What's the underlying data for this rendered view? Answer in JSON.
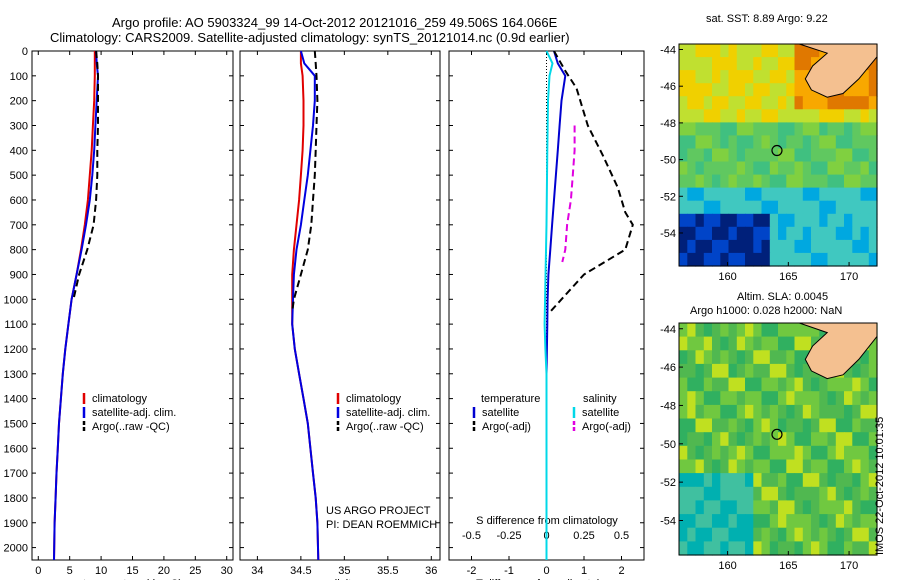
{
  "titles": {
    "line1": "Argo profile: AO 5903324_99 14-Oct-2012 20121016_259 49.506S 164.066E",
    "line2": "Climatology: CARS2009. Satellite-adjusted climatology: synTS_20121014.nc (0.9d earlier)"
  },
  "map_top_title": "sat. SST: 8.89 Argo: 9.22",
  "map_bottom_title1": "Altim. SLA: 0.0045",
  "map_bottom_title2": "Argo h1000: 0.028 h2000: NaN",
  "side_stamp": "IMOS 22-Oct-2012 10:01:35",
  "project": {
    "line1": "US ARGO PROJECT",
    "line2": "PI: DEAN ROEMMICH"
  },
  "legend": {
    "clim": "climatology",
    "sat": "satellite-adj. clim.",
    "argo": "Argo(..raw -QC)",
    "temperature_head": "temperature",
    "salinity_head": "salinity",
    "satellite": "satellite",
    "argo_adj": "Argo(-adj)"
  },
  "colors": {
    "clim": "#e00000",
    "sat": "#0000e0",
    "argo": "#000000",
    "diff_t_sat": "#0000d0",
    "diff_s_sat": "#00d8e8",
    "diff_s_argo": "#e000e0",
    "land": "#f4c090",
    "circle": "#000000"
  },
  "chart_data": [
    {
      "type": "line",
      "panel": "temperature",
      "xlabel": "temperature (deg C)",
      "ylabel": "",
      "xlim": [
        -1,
        31
      ],
      "ylim": [
        0,
        2050
      ],
      "y_reversed": true,
      "xticks": [
        0,
        5,
        10,
        15,
        20,
        25,
        30
      ],
      "yticks": [
        0,
        100,
        200,
        300,
        400,
        500,
        600,
        700,
        800,
        900,
        1000,
        1100,
        1200,
        1300,
        1400,
        1500,
        1600,
        1700,
        1800,
        1900,
        2000
      ],
      "series": [
        {
          "name": "climatology",
          "style": "solid",
          "color_key": "clim",
          "x": [
            9.0,
            9.0,
            9.0,
            8.9,
            8.7,
            8.5,
            8.2,
            7.9,
            7.4,
            6.8,
            6.1,
            5.3,
            4.8,
            4.3,
            3.9,
            3.6,
            3.3,
            3.1,
            2.9,
            2.75,
            2.6,
            2.5
          ],
          "y": [
            0,
            50,
            100,
            200,
            300,
            400,
            500,
            600,
            700,
            800,
            900,
            1000,
            1100,
            1200,
            1300,
            1400,
            1500,
            1600,
            1700,
            1800,
            1900,
            2050
          ]
        },
        {
          "name": "satellite-adj. clim.",
          "style": "solid",
          "color_key": "sat",
          "x": [
            9.2,
            9.3,
            9.5,
            9.3,
            9.1,
            8.9,
            8.6,
            8.2,
            7.6,
            6.9,
            6.1,
            5.3,
            4.8,
            4.3,
            3.9,
            3.6,
            3.3,
            3.1,
            2.9,
            2.75,
            2.6,
            2.5
          ],
          "y": [
            0,
            50,
            100,
            200,
            300,
            400,
            500,
            600,
            700,
            800,
            900,
            1000,
            1100,
            1200,
            1300,
            1400,
            1500,
            1600,
            1700,
            1800,
            1900,
            2050
          ]
        },
        {
          "name": "Argo(..raw -QC)",
          "style": "dashed",
          "color_key": "argo",
          "x": [
            9.2,
            9.4,
            9.5,
            9.5,
            9.5,
            9.4,
            9.4,
            9.2,
            8.8,
            7.8,
            6.5,
            5.6
          ],
          "y": [
            0,
            50,
            100,
            200,
            300,
            400,
            500,
            600,
            700,
            800,
            900,
            1000
          ]
        }
      ]
    },
    {
      "type": "line",
      "panel": "salinity",
      "xlabel": "salinity",
      "ylabel": "",
      "xlim": [
        33.8,
        36.1
      ],
      "ylim": [
        0,
        2050
      ],
      "y_reversed": true,
      "xticks": [
        34,
        34.5,
        35,
        35.5,
        36
      ],
      "series": [
        {
          "name": "climatology",
          "style": "solid",
          "color_key": "clim",
          "x": [
            34.5,
            34.5,
            34.52,
            34.53,
            34.53,
            34.52,
            34.5,
            34.48,
            34.45,
            34.42,
            34.4,
            34.4,
            34.4,
            34.43,
            34.48,
            34.53,
            34.58,
            34.61,
            34.64,
            34.67,
            34.69,
            34.7
          ],
          "y": [
            0,
            50,
            100,
            200,
            300,
            400,
            500,
            600,
            700,
            800,
            900,
            1000,
            1100,
            1200,
            1300,
            1400,
            1500,
            1600,
            1700,
            1800,
            1900,
            2050
          ]
        },
        {
          "name": "satellite-adj. clim.",
          "style": "solid",
          "color_key": "sat",
          "x": [
            34.5,
            34.54,
            34.66,
            34.66,
            34.64,
            34.61,
            34.58,
            34.54,
            34.5,
            34.45,
            34.42,
            34.41,
            34.4,
            34.43,
            34.48,
            34.53,
            34.58,
            34.61,
            34.64,
            34.67,
            34.69,
            34.7
          ],
          "y": [
            0,
            50,
            100,
            200,
            300,
            400,
            500,
            600,
            700,
            800,
            900,
            1000,
            1100,
            1200,
            1300,
            1400,
            1500,
            1600,
            1700,
            1800,
            1900,
            2050
          ]
        },
        {
          "name": "Argo(..raw -QC)",
          "style": "dashed",
          "color_key": "argo",
          "x": [
            34.66,
            34.67,
            34.68,
            34.69,
            34.68,
            34.67,
            34.66,
            34.64,
            34.62,
            34.58,
            34.5,
            34.42,
            34.4
          ],
          "y": [
            0,
            50,
            100,
            200,
            300,
            400,
            500,
            600,
            700,
            800,
            900,
            1000,
            1050
          ]
        }
      ]
    },
    {
      "type": "line",
      "panel": "difference",
      "xlabel": "T difference from climatology",
      "xlabel2": "S difference from climatology",
      "ylabel": "",
      "xlim": [
        -2.6,
        2.6
      ],
      "ylim": [
        0,
        2050
      ],
      "y_reversed": true,
      "xticks": [
        -2,
        -1,
        0,
        1,
        2
      ],
      "xticks2_labels": [
        "-0.5",
        "-0.25",
        "0",
        "0.25",
        "0.5"
      ],
      "series": [
        {
          "name": "temperature satellite",
          "style": "solid",
          "color_key": "diff_t_sat",
          "x": [
            0.2,
            0.3,
            0.5,
            0.4,
            0.35,
            0.3,
            0.25,
            0.2,
            0.15,
            0.1,
            0.05,
            0.03,
            0.02,
            0.01,
            0.0,
            0.0,
            0.0,
            0.0,
            0.0,
            0.0,
            0.0
          ],
          "y": [
            0,
            50,
            100,
            200,
            300,
            400,
            500,
            600,
            700,
            800,
            900,
            1000,
            1100,
            1200,
            1300,
            1400,
            1500,
            1600,
            1700,
            1800,
            2050
          ]
        },
        {
          "name": "temperature Argo(-adj)",
          "style": "dashed",
          "color_key": "argo",
          "x": [
            0.2,
            0.5,
            0.8,
            1.1,
            1.5,
            1.9,
            2.1,
            2.3,
            2.1,
            1.0,
            0.4,
            0.1
          ],
          "y": [
            0,
            80,
            150,
            300,
            420,
            550,
            650,
            700,
            800,
            900,
            1000,
            1050
          ]
        },
        {
          "name": "salinity satellite",
          "style": "solid",
          "color_key": "diff_s_sat",
          "x": [
            0.0,
            0.16,
            0.08,
            0.04,
            0.02,
            0.0,
            -0.05,
            -0.03,
            0.0,
            0.0,
            0.0,
            0.0,
            0.0,
            0.0,
            0.0,
            0.0,
            0.0,
            0.0,
            0.0,
            0.0
          ],
          "y": [
            0,
            50,
            100,
            200,
            400,
            700,
            1100,
            1200,
            1300,
            1400,
            1500,
            1600,
            1700,
            1800,
            1900,
            2000,
            2050,
            2050,
            2050,
            2050
          ]
        },
        {
          "name": "salinity Argo(-adj)",
          "style": "dashed",
          "color_key": "diff_s_argo",
          "x": [
            0.75,
            0.75,
            0.7,
            0.65,
            0.55,
            0.5,
            0.42
          ],
          "y": [
            300,
            400,
            500,
            600,
            700,
            800,
            850
          ]
        }
      ]
    }
  ],
  "maps": {
    "lon_ticks": [
      160,
      165,
      170
    ],
    "lat_ticks": [
      -44,
      -46,
      -48,
      -50,
      -52,
      -54
    ],
    "lon_range": [
      156,
      172.3
    ],
    "lat_range": [
      -55.8,
      -43.7
    ],
    "argo_position": {
      "lon": 164.066,
      "lat": -49.506
    }
  }
}
